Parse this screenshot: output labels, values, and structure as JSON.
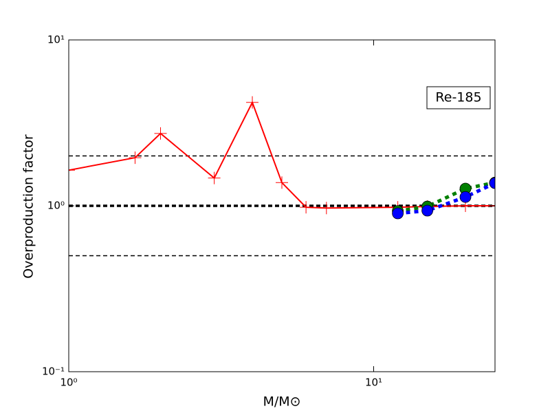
{
  "chart_data": {
    "type": "line",
    "xlabel": "M/M⊙",
    "ylabel": "Overproduction factor",
    "annotation": "Re-185",
    "xscale": "log",
    "yscale": "log",
    "xlim": [
      1,
      25
    ],
    "ylim": [
      0.1,
      10
    ],
    "xticks": [
      {
        "value": 1,
        "label": "10⁰"
      },
      {
        "value": 10,
        "label": "10¹"
      }
    ],
    "yticks": [
      {
        "value": 0.1,
        "label": "10⁻¹"
      },
      {
        "value": 1,
        "label": "10⁰"
      },
      {
        "value": 10,
        "label": "10¹"
      }
    ],
    "hlines": [
      {
        "y": 2,
        "linewidth": 1.5
      },
      {
        "y": 1,
        "linewidth": 3.5
      },
      {
        "y": 0.5,
        "linewidth": 1.5
      }
    ],
    "series": [
      {
        "color": "#ff0000",
        "linestyle": "solid",
        "marker": "plus",
        "x": [
          1,
          1.65,
          2,
          3,
          4,
          5,
          6,
          7,
          12,
          15,
          20,
          25
        ],
        "values": [
          1.64,
          1.95,
          2.73,
          1.47,
          4.2,
          1.38,
          0.98,
          0.97,
          0.98,
          0.99,
          1.0,
          1.0
        ]
      },
      {
        "color": "#007f00",
        "linestyle": "dotted",
        "marker": "circle",
        "x": [
          12,
          15,
          20,
          25
        ],
        "values": [
          0.93,
          0.99,
          1.27,
          1.38
        ]
      },
      {
        "color": "#0000ff",
        "linestyle": "dotted",
        "marker": "circle",
        "x": [
          12,
          15,
          20,
          25
        ],
        "values": [
          0.9,
          0.935,
          1.13,
          1.37
        ]
      }
    ]
  }
}
